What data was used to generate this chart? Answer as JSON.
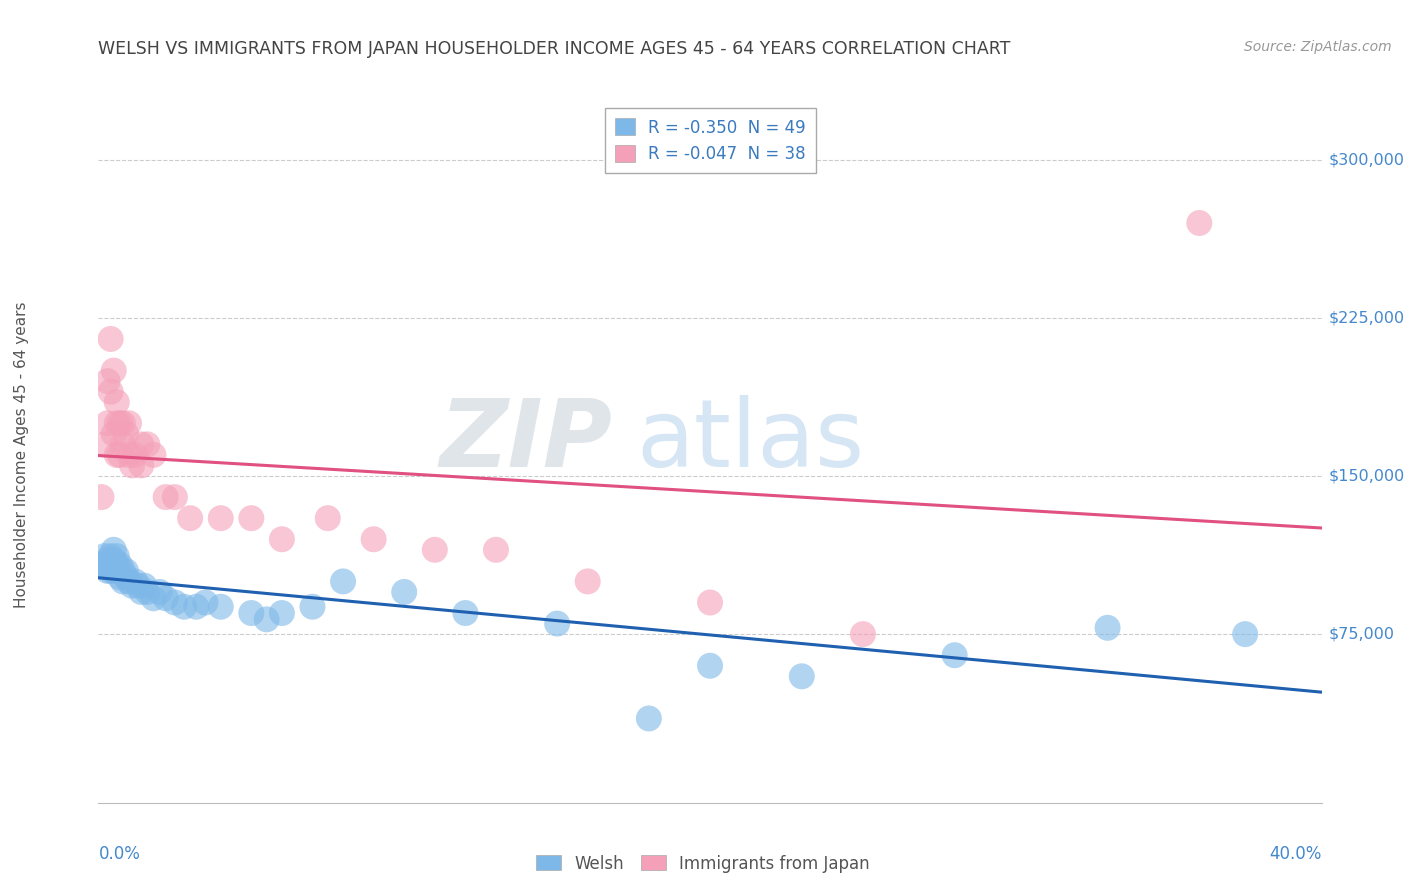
{
  "title": "WELSH VS IMMIGRANTS FROM JAPAN HOUSEHOLDER INCOME AGES 45 - 64 YEARS CORRELATION CHART",
  "source": "Source: ZipAtlas.com",
  "ylabel": "Householder Income Ages 45 - 64 years",
  "xlim": [
    0.0,
    0.4
  ],
  "ylim": [
    -5000,
    325000
  ],
  "welsh_color": "#7eb8e8",
  "japan_color": "#f4a0b8",
  "welsh_line_color": "#2060b0",
  "japan_line_color": "#e05080",
  "background_color": "#ffffff",
  "welsh_x": [
    0.001,
    0.002,
    0.002,
    0.003,
    0.003,
    0.003,
    0.004,
    0.004,
    0.005,
    0.005,
    0.005,
    0.006,
    0.006,
    0.006,
    0.007,
    0.007,
    0.008,
    0.008,
    0.009,
    0.009,
    0.01,
    0.011,
    0.012,
    0.013,
    0.014,
    0.015,
    0.016,
    0.018,
    0.02,
    0.022,
    0.025,
    0.028,
    0.032,
    0.035,
    0.04,
    0.05,
    0.055,
    0.06,
    0.07,
    0.08,
    0.1,
    0.12,
    0.15,
    0.18,
    0.2,
    0.23,
    0.28,
    0.33,
    0.375
  ],
  "welsh_y": [
    108000,
    112000,
    108000,
    110000,
    105000,
    108000,
    112000,
    105000,
    115000,
    110000,
    105000,
    108000,
    112000,
    105000,
    108000,
    102000,
    105000,
    100000,
    105000,
    102000,
    100000,
    98000,
    100000,
    98000,
    95000,
    98000,
    95000,
    92000,
    95000,
    92000,
    90000,
    88000,
    88000,
    90000,
    88000,
    85000,
    82000,
    85000,
    88000,
    100000,
    95000,
    85000,
    80000,
    35000,
    60000,
    55000,
    65000,
    78000,
    75000
  ],
  "japan_x": [
    0.001,
    0.002,
    0.003,
    0.003,
    0.004,
    0.004,
    0.005,
    0.005,
    0.006,
    0.006,
    0.006,
    0.007,
    0.007,
    0.008,
    0.008,
    0.009,
    0.01,
    0.01,
    0.011,
    0.012,
    0.014,
    0.014,
    0.016,
    0.018,
    0.022,
    0.025,
    0.03,
    0.04,
    0.05,
    0.06,
    0.075,
    0.09,
    0.11,
    0.13,
    0.16,
    0.2,
    0.25,
    0.36
  ],
  "japan_y": [
    140000,
    165000,
    175000,
    195000,
    190000,
    215000,
    170000,
    200000,
    185000,
    160000,
    175000,
    175000,
    160000,
    175000,
    165000,
    170000,
    160000,
    175000,
    155000,
    160000,
    165000,
    155000,
    165000,
    160000,
    140000,
    140000,
    130000,
    130000,
    130000,
    120000,
    130000,
    120000,
    115000,
    115000,
    100000,
    90000,
    75000,
    270000
  ]
}
